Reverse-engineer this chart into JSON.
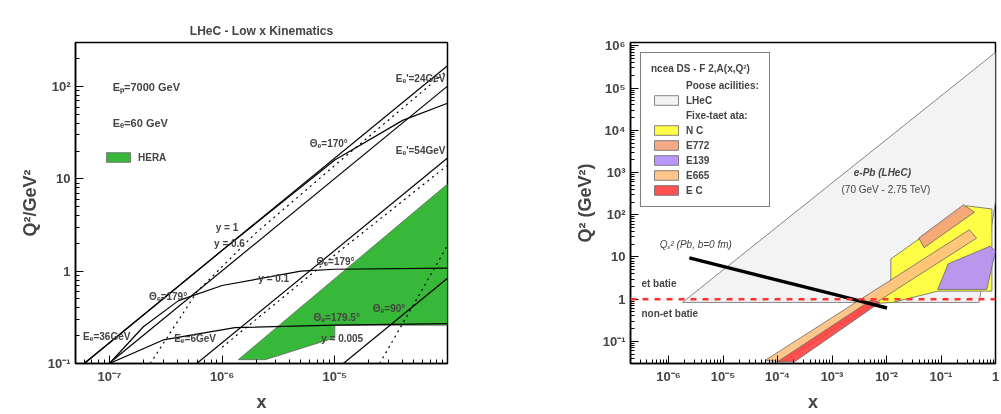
{
  "chart_data": [
    {
      "type": "line",
      "title": "LHeC - Low x Kinematics",
      "xlabel": "x",
      "ylabel": "Q²/GeV²",
      "log": "xy",
      "xlim": [
        5e-08,
        0.0001
      ],
      "ylim": [
        0.1,
        300
      ],
      "xticks": [
        {
          "value": 1e-07,
          "label": "10⁻⁷"
        },
        {
          "value": 1e-06,
          "label": "10⁻⁶"
        },
        {
          "value": 1e-05,
          "label": "10⁻⁵"
        }
      ],
      "yticks": [
        {
          "value": 0.1,
          "label": "10⁻¹"
        },
        1,
        10,
        {
          "value": 100,
          "label": "10²"
        }
      ],
      "grid": false,
      "legend": "top left",
      "series": [
        {
          "color": "#000000",
          "x": [
            5.95e-08,
            0.0001
          ],
          "values": [
            0.1,
            168
          ]
        },
        {
          "color": "#000000",
          "x": [
            9.9e-08,
            0.0001
          ],
          "values": [
            0.1,
            101
          ]
        },
        {
          "color": "#000000",
          "x": [
            5.95e-07,
            0.0001
          ],
          "values": [
            0.1,
            16.8
          ]
        },
        {
          "color": "#000000",
          "x": [
            1.19e-05,
            0.0001
          ],
          "values": [
            0.1,
            0.84
          ]
        },
        {
          "color": "#000000",
          "x": [
            6e-08,
            1e-06,
            1e-05,
            4e-05,
            0.0001
          ],
          "values": [
            0.1,
            1.68,
            16,
            43,
            66
          ]
        },
        {
          "color": "#000000",
          "x": [
            1e-07,
            2e-07,
            4.1e-07,
            1e-06,
            5e-06,
            1e-05,
            0.0001
          ],
          "values": [
            0.1,
            0.25,
            0.48,
            0.7,
            1.0,
            1.05,
            1.08
          ]
        },
        {
          "color": "#000000",
          "x": [
            1e-07,
            3e-07,
            1.3e-06,
            1e-05,
            0.0001
          ],
          "values": [
            0.1,
            0.18,
            0.245,
            0.26,
            0.27
          ]
        },
        {
          "color": "#000000",
          "line_style": "dotted",
          "x": [
            2.3e-07,
            6e-07,
            2e-06,
            1e-05,
            0.0001
          ],
          "values": [
            0.1,
            0.6,
            2.6,
            14,
            150
          ]
        },
        {
          "color": "#000000",
          "line_style": "dotted",
          "x": [
            1e-06,
            1e-05,
            0.0001
          ],
          "values": [
            0.15,
            1.5,
            14
          ]
        },
        {
          "color": "#000000",
          "line_style": "dotted",
          "x": [
            2.5e-05,
            0.0001
          ],
          "values": [
            0.1,
            1.9
          ]
        },
        {
          "type": "area",
          "name": "HERA",
          "color": "#22b022",
          "x": [
            1.39e-06,
            0.0001,
            0.0001,
            1e-05,
            1e-05,
            2.42e-06
          ],
          "values": [
            0.11,
            8.8,
            0.26,
            0.26,
            0.19,
            0.11
          ]
        }
      ],
      "annotations": [
        "Eₚ=7000 GeV",
        "Eₑ=60 GeV",
        {
          "text": "y = 1",
          "x": 1.45e-06,
          "y": 2.44
        },
        {
          "text": "y = 0.6",
          "x": 1.66e-06,
          "y": 1.67
        },
        {
          "text": "y = 0.1",
          "x": 4.1e-06,
          "y": 0.69
        },
        {
          "text": "y = 0.005",
          "x": 1.86e-05,
          "y": 0.156
        },
        {
          "text": "Θₑ=179°",
          "x": 5.1e-07,
          "y": 0.44
        },
        {
          "text": "Θₑ=179°",
          "x": 1.56e-05,
          "y": 1.056
        },
        {
          "text": "Θₑ=179.5°",
          "x": 1.74e-05,
          "y": 0.261
        },
        {
          "text": "Θₑ=90°",
          "x": 4.4e-05,
          "y": 0.33
        },
        {
          "text": "Θₑ=170°",
          "x": 1.36e-05,
          "y": 19.9
        },
        {
          "text": "Eₑ=36GeV",
          "x": 1.6e-07,
          "y": 0.161
        },
        {
          "text": "Eₑ=6GeV",
          "x": 9.2e-07,
          "y": 0.155
        },
        {
          "text": "Eₑ'=24GeV",
          "x": 0.0001,
          "y": 101
        },
        {
          "text": "Eₑ'=54GeV",
          "x": 0.0001,
          "y": 16.8
        }
      ]
    },
    {
      "type": "area",
      "xlabel": "x",
      "ylabel": "Q² (GeV²)",
      "log": "xy",
      "xlim": [
        2e-07,
        1
      ],
      "ylim": [
        0.03,
        1200000.0
      ],
      "xticks": [
        {
          "value": 1e-06,
          "label": "10⁻⁶"
        },
        {
          "value": 1e-05,
          "label": "10⁻⁵"
        },
        {
          "value": 0.0001,
          "label": "10⁻⁴"
        },
        {
          "value": 0.001,
          "label": "10⁻³"
        },
        {
          "value": 0.01,
          "label": "10⁻²"
        },
        {
          "value": 0.1,
          "label": "10⁻¹"
        },
        1
      ],
      "yticks": [
        {
          "value": 0.1,
          "label": "10⁻¹"
        },
        1,
        10,
        {
          "value": 100,
          "label": "10²"
        },
        {
          "value": 1000,
          "label": "10³"
        },
        {
          "value": 10000,
          "label": "10⁴"
        },
        {
          "value": 100000,
          "label": "10⁵"
        },
        {
          "value": 1000000,
          "label": "10⁶"
        }
      ],
      "grid": false,
      "legend": "top left",
      "legend_title": "ncea DS - F 2,A(x,Q²)",
      "series": [
        {
          "name": "LHeC",
          "color": "#f2f2f2",
          "x": [
            1.8e-06,
            1,
            1,
            0.5
          ],
          "values": [
            0.84,
            700000,
            200,
            0.84
          ]
        },
        {
          "name": "N C",
          "color": "#ffff33",
          "x": [
            0.0046,
            0.012,
            0.012,
            0.29,
            0.86,
            0.86,
            0.087,
            0.013
          ],
          "values": [
            0.77,
            2.6,
            9,
            163,
            137,
            1.55,
            1.55,
            0.84
          ]
        },
        {
          "name": "E772",
          "color": "#f4a07a",
          "x": [
            0.039,
            0.26,
            0.41,
            0.049
          ],
          "values": [
            28,
            173,
            115,
            16.6
          ]
        },
        {
          "name": "E139",
          "color": "#b38cff",
          "x": [
            0.087,
            0.136,
            0.8,
            1,
            0.69
          ],
          "values": [
            1.7,
            6.9,
            18,
            13.9,
            1.7
          ]
        },
        {
          "name": "E665",
          "color": "#ffc080",
          "x": [
            5.9e-05,
            0.33,
            0.45,
            0.00013
          ],
          "values": [
            0.0355,
            44,
            28,
            0.033
          ]
        },
        {
          "name": "E C",
          "color": "#ff4040",
          "x": [
            0.0001,
            0.0052,
            0.0076,
            0.000205
          ],
          "values": [
            0.033,
            0.95,
            0.84,
            0.033
          ]
        },
        {
          "type": "line",
          "color": "#000000",
          "x": [
            2.4e-06,
            0.0011,
            0.0102
          ],
          "values": [
            9.5,
            1.3,
            0.62
          ]
        }
      ],
      "ref_lines": [
        {
          "axis": "y",
          "value": 1,
          "color": "#ff3333",
          "line_style": "dashed"
        }
      ],
      "annotations": [
        "Poose acilities:",
        "Fixe-taet ata:",
        "e-Pb (LHeC)",
        "(70 GeV - 2.75 TeV)",
        "Qₛ² (Pb, b=0 fm)",
        "et batie",
        "non-et batie"
      ]
    }
  ]
}
